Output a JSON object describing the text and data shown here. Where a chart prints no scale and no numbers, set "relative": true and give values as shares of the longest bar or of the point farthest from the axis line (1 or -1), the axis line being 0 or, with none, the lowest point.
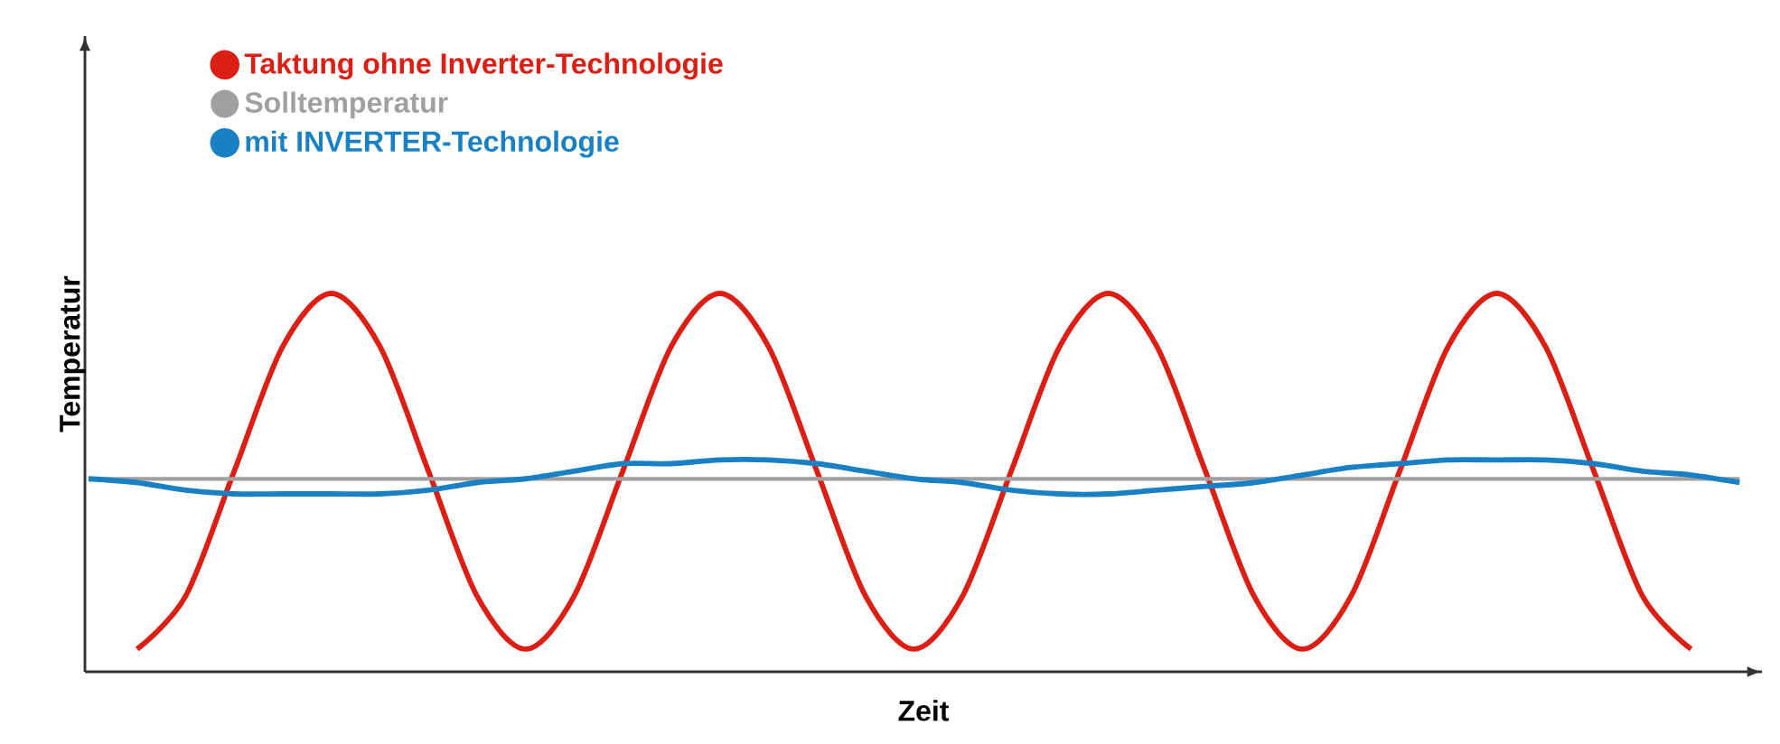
{
  "chart_data": {
    "type": "line",
    "relative": true,
    "xlabel": "Zeit",
    "ylabel": "Temperatur",
    "legend": "top left",
    "marker": "none",
    "line_style": "solid",
    "categories": [
      null,
      null,
      null,
      null,
      null,
      null,
      null,
      null,
      null,
      null,
      null,
      null,
      null,
      null,
      null,
      null,
      null,
      null,
      null,
      null,
      null,
      null,
      null,
      null,
      null,
      null,
      null,
      null,
      null,
      null,
      null,
      null,
      null,
      null,
      null
    ],
    "series": [
      {
        "name": "Taktung ohne Inverter-Technologie",
        "color": "#dc1f14",
        "values": [
          null,
          0.06,
          0.2,
          0.53,
          0.86,
          1,
          0.86,
          0.53,
          0.2,
          0.06,
          0.2,
          0.53,
          0.86,
          1,
          0.86,
          0.53,
          0.2,
          0.06,
          0.2,
          0.53,
          0.86,
          1,
          0.86,
          0.53,
          0.2,
          0.06,
          0.2,
          0.53,
          0.86,
          1,
          0.86,
          0.53,
          0.2,
          0.06,
          null
        ]
      },
      {
        "name": "Solltemperatur",
        "color": "#a0a0a0",
        "values": [
          0.51,
          0.51,
          0.51,
          0.51,
          0.51,
          0.51,
          0.51,
          0.51,
          0.51,
          0.51,
          0.51,
          0.51,
          0.51,
          0.51,
          0.51,
          0.51,
          0.51,
          0.51,
          0.51,
          0.51,
          0.51,
          0.51,
          0.51,
          0.51,
          0.51,
          0.51,
          0.51,
          0.51,
          0.51,
          0.51,
          0.51,
          0.51,
          0.51,
          0.51,
          0.51
        ]
      },
      {
        "name": "mit INVERTER-Technologie",
        "color": "#1a80c4",
        "values": [
          0.51,
          0.5,
          0.48,
          0.47,
          0.47,
          0.47,
          0.47,
          0.48,
          0.5,
          0.51,
          0.53,
          0.55,
          0.55,
          0.56,
          0.56,
          0.55,
          0.53,
          0.51,
          0.5,
          0.48,
          0.47,
          0.47,
          0.48,
          0.49,
          0.5,
          0.52,
          0.54,
          0.55,
          0.56,
          0.56,
          0.56,
          0.55,
          0.53,
          0.52,
          0.5
        ]
      }
    ]
  }
}
